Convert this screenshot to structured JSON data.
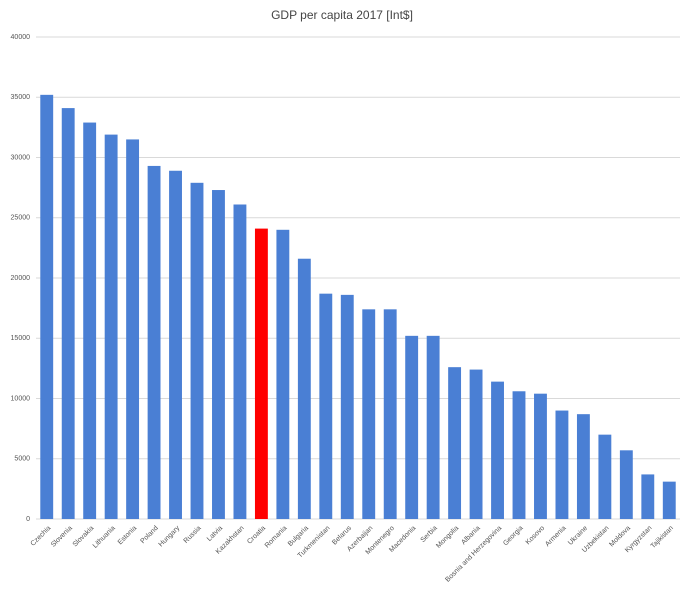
{
  "chart_data": {
    "type": "bar",
    "title": "GDP per capita 2017 [Int$]",
    "categories": [
      "Czechia",
      "Slovenia",
      "Slovakia",
      "Lithuania",
      "Estonia",
      "Poland",
      "Hungary",
      "Russia",
      "Latvia",
      "Kazakhstan",
      "Croatia",
      "Romania",
      "Bulgaria",
      "Turkmenistan",
      "Belarus",
      "Azerbaijan",
      "Montenegro",
      "Macedonia",
      "Serbia",
      "Mongolia",
      "Albania",
      "Bosnia and Herzegovina",
      "Georgia",
      "Kosovo",
      "Armenia",
      "Ukraine",
      "Uzbekistan",
      "Moldova",
      "Kyrgyzstan",
      "Tajikistan"
    ],
    "values": [
      35200,
      34100,
      32900,
      31900,
      31500,
      29300,
      28900,
      27900,
      27300,
      26100,
      24100,
      24000,
      21600,
      18700,
      18600,
      17400,
      17400,
      15200,
      15200,
      12600,
      12400,
      11400,
      10600,
      10400,
      9000,
      8700,
      7000,
      5700,
      3700,
      3100
    ],
    "colors": [
      "#4a7fd4",
      "#4a7fd4",
      "#4a7fd4",
      "#4a7fd4",
      "#4a7fd4",
      "#4a7fd4",
      "#4a7fd4",
      "#4a7fd4",
      "#4a7fd4",
      "#4a7fd4",
      "#ff0000",
      "#4a7fd4",
      "#4a7fd4",
      "#4a7fd4",
      "#4a7fd4",
      "#4a7fd4",
      "#4a7fd4",
      "#4a7fd4",
      "#4a7fd4",
      "#4a7fd4",
      "#4a7fd4",
      "#4a7fd4",
      "#4a7fd4",
      "#4a7fd4",
      "#4a7fd4",
      "#4a7fd4",
      "#4a7fd4",
      "#4a7fd4",
      "#4a7fd4",
      "#4a7fd4"
    ],
    "ylim": [
      0,
      40000
    ],
    "yticks": [
      0,
      5000,
      10000,
      15000,
      20000,
      25000,
      30000,
      35000,
      40000
    ],
    "grid": true
  }
}
